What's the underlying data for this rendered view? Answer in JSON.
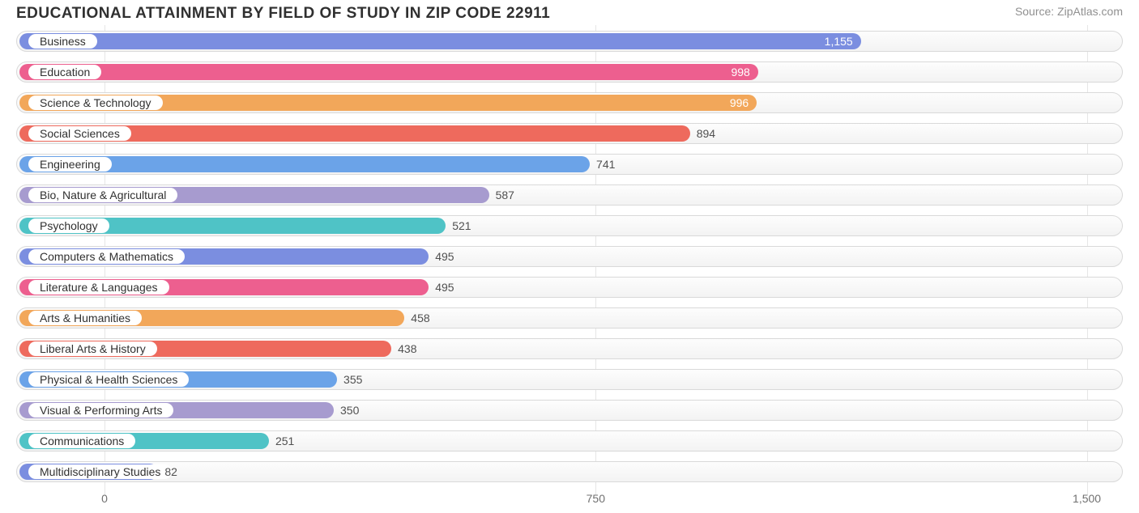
{
  "title": "EDUCATIONAL ATTAINMENT BY FIELD OF STUDY IN ZIP CODE 22911",
  "source": "Source: ZipAtlas.com",
  "chart": {
    "type": "bar-horizontal",
    "xmin": -130,
    "xmax": 1550,
    "xticks": [
      0,
      750,
      1500
    ],
    "value_inside_threshold": 900,
    "track_border": "#d9d9d9",
    "background": "#ffffff",
    "label_fontsize": 14,
    "title_fontsize": 19,
    "bars": [
      {
        "label": "Business",
        "value": 1155,
        "display": "1,155",
        "color": "#7b8ee0"
      },
      {
        "label": "Education",
        "value": 998,
        "display": "998",
        "color": "#ed5f8f"
      },
      {
        "label": "Science & Technology",
        "value": 996,
        "display": "996",
        "color": "#f2a75a"
      },
      {
        "label": "Social Sciences",
        "value": 894,
        "display": "894",
        "color": "#ee6a5d"
      },
      {
        "label": "Engineering",
        "value": 741,
        "display": "741",
        "color": "#6ba3e8"
      },
      {
        "label": "Bio, Nature & Agricultural",
        "value": 587,
        "display": "587",
        "color": "#a79bcf"
      },
      {
        "label": "Psychology",
        "value": 521,
        "display": "521",
        "color": "#4fc3c6"
      },
      {
        "label": "Computers & Mathematics",
        "value": 495,
        "display": "495",
        "color": "#7b8ee0"
      },
      {
        "label": "Literature & Languages",
        "value": 495,
        "display": "495",
        "color": "#ed5f8f"
      },
      {
        "label": "Arts & Humanities",
        "value": 458,
        "display": "458",
        "color": "#f2a75a"
      },
      {
        "label": "Liberal Arts & History",
        "value": 438,
        "display": "438",
        "color": "#ee6a5d"
      },
      {
        "label": "Physical & Health Sciences",
        "value": 355,
        "display": "355",
        "color": "#6ba3e8"
      },
      {
        "label": "Visual & Performing Arts",
        "value": 350,
        "display": "350",
        "color": "#a79bcf"
      },
      {
        "label": "Communications",
        "value": 251,
        "display": "251",
        "color": "#4fc3c6"
      },
      {
        "label": "Multidisciplinary Studies",
        "value": 82,
        "display": "82",
        "color": "#7b8ee0"
      }
    ]
  }
}
